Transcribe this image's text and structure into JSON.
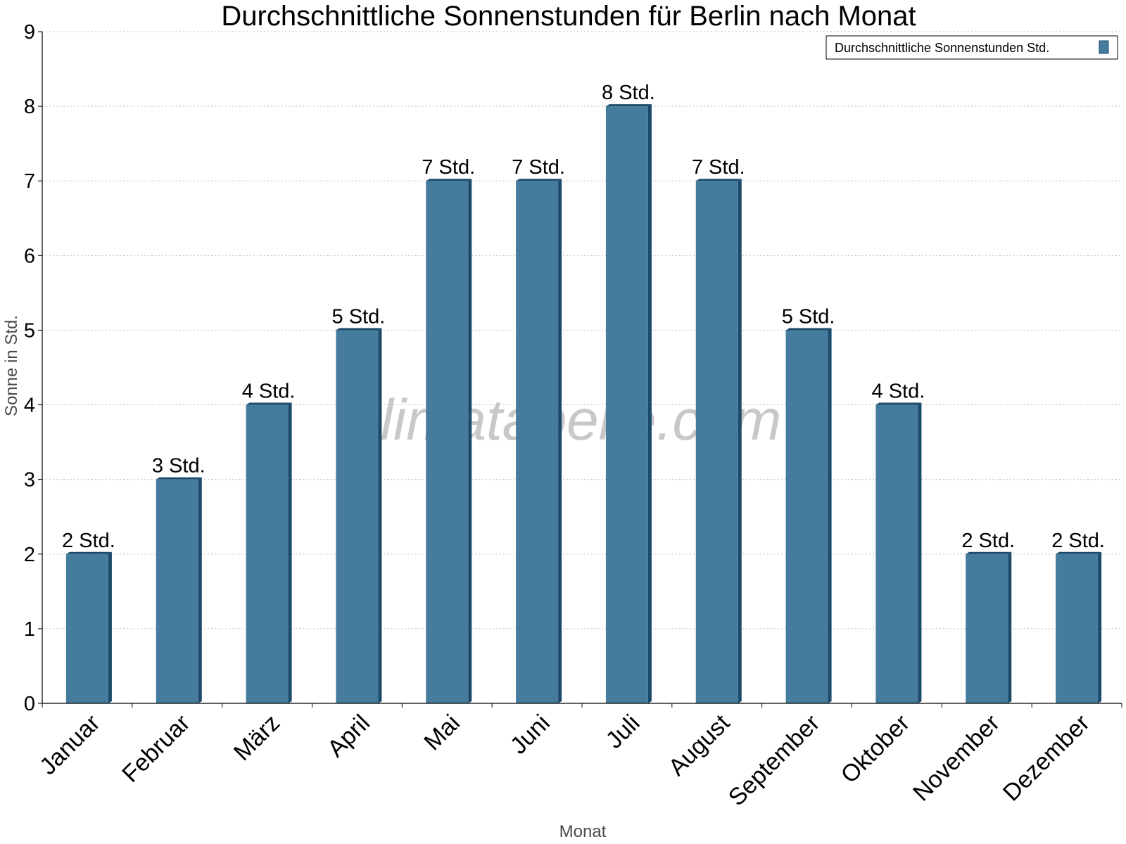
{
  "chart_data": {
    "type": "bar",
    "title": "Durchschnittliche Sonnenstunden für Berlin nach Monat",
    "xlabel": "Monat",
    "ylabel": "Sonne in Std.",
    "ylim": [
      0,
      9
    ],
    "yticks": [
      0,
      1,
      2,
      3,
      4,
      5,
      6,
      7,
      8,
      9
    ],
    "grid": true,
    "legend_position": "top-right",
    "categories": [
      "Januar",
      "Februar",
      "März",
      "April",
      "Mai",
      "Juni",
      "Juli",
      "August",
      "September",
      "Oktober",
      "November",
      "Dezember"
    ],
    "series": [
      {
        "name": "Durchschnittliche Sonnenstunden Std.",
        "values": [
          2,
          3,
          4,
          5,
          7,
          7,
          8,
          7,
          5,
          4,
          2,
          2
        ],
        "labels": [
          "2 Std.",
          "3 Std.",
          "4 Std.",
          "5 Std.",
          "7 Std.",
          "7 Std.",
          "8 Std.",
          "7 Std.",
          "5 Std.",
          "4 Std.",
          "2 Std.",
          "2 Std."
        ],
        "color": "#457b9d",
        "edge_color": "#1c4a6a"
      }
    ]
  },
  "watermark": "klimatabelle.com"
}
